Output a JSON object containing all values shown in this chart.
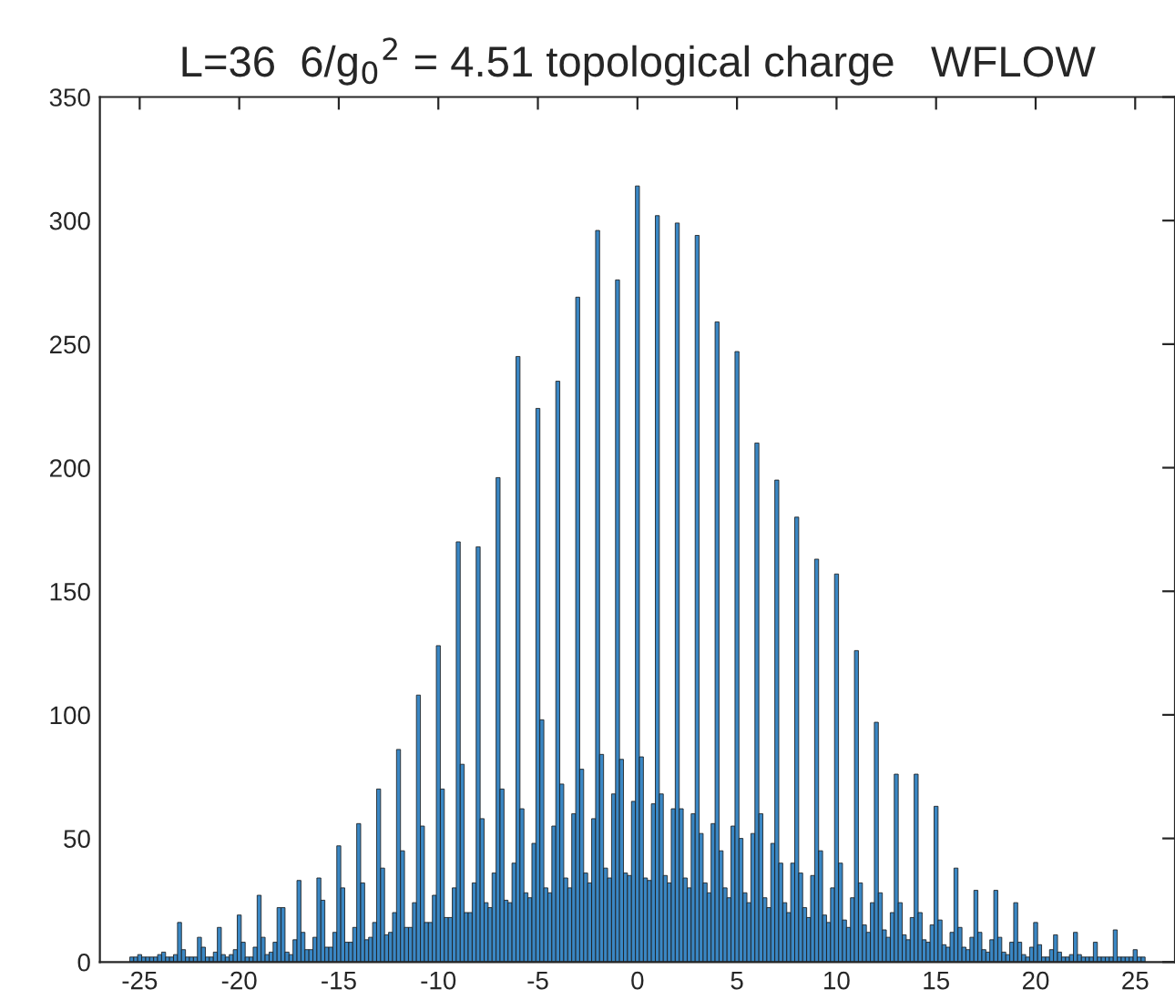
{
  "chart_data": {
    "type": "histogram",
    "title": "L=36  6/g$_{0}$$^{2}$ = 4.51 topological charge   WFLOW",
    "bins": [
      -25.5,
      -25.3,
      -25.1,
      -24.9,
      -24.7,
      -24.5,
      -24.3,
      -24.1,
      -23.9,
      -23.7,
      -23.5,
      -23.3,
      -23.1,
      -22.9,
      -22.7,
      -22.5,
      -22.3,
      -22.1,
      -21.9,
      -21.7,
      -21.5,
      -21.3,
      -21.1,
      -20.9,
      -20.7,
      -20.5,
      -20.3,
      -20.1,
      -19.9,
      -19.7,
      -19.5,
      -19.3,
      -19.1,
      -18.9,
      -18.7,
      -18.5,
      -18.3,
      -18.1,
      -17.9,
      -17.7,
      -17.5,
      -17.3,
      -17.1,
      -16.9,
      -16.7,
      -16.5,
      -16.3,
      -16.1,
      -15.9,
      -15.7,
      -15.5,
      -15.3,
      -15.1,
      -14.9,
      -14.7,
      -14.5,
      -14.3,
      -14.1,
      -13.9,
      -13.7,
      -13.5,
      -13.3,
      -13.1,
      -12.9,
      -12.7,
      -12.5,
      -12.3,
      -12.1,
      -11.9,
      -11.7,
      -11.5,
      -11.3,
      -11.1,
      -10.9,
      -10.7,
      -10.5,
      -10.3,
      -10.1,
      -9.9,
      -9.7,
      -9.5,
      -9.3,
      -9.1,
      -8.9,
      -8.7,
      -8.5,
      -8.3,
      -8.1,
      -7.9,
      -7.7,
      -7.5,
      -7.3,
      -7.1,
      -6.9,
      -6.7,
      -6.5,
      -6.3,
      -6.1,
      -5.9,
      -5.7,
      -5.5,
      -5.3,
      -5.1,
      -4.9,
      -4.7,
      -4.5,
      -4.3,
      -4.1,
      -3.9,
      -3.7,
      -3.5,
      -3.3,
      -3.1,
      -2.9,
      -2.7,
      -2.5,
      -2.3,
      -2.1,
      -1.9,
      -1.7,
      -1.5,
      -1.3,
      -1.1,
      -0.9,
      -0.7,
      -0.5,
      -0.3,
      -0.1,
      0.1,
      0.3,
      0.5,
      0.7,
      0.9,
      1.1,
      1.3,
      1.5,
      1.7,
      1.9,
      2.1,
      2.3,
      2.5,
      2.7,
      2.9,
      3.1,
      3.3,
      3.5,
      3.7,
      3.9,
      4.1,
      4.3,
      4.5,
      4.7,
      4.9,
      5.1,
      5.3,
      5.5,
      5.7,
      5.9,
      6.1,
      6.3,
      6.5,
      6.7,
      6.9,
      7.1,
      7.3,
      7.5,
      7.7,
      7.9,
      8.1,
      8.3,
      8.5,
      8.7,
      8.9,
      9.1,
      9.3,
      9.5,
      9.7,
      9.9,
      10.1,
      10.3,
      10.5,
      10.7,
      10.9,
      11.1,
      11.3,
      11.5,
      11.7,
      11.9,
      12.1,
      12.3,
      12.5,
      12.7,
      12.9,
      13.1,
      13.3,
      13.5,
      13.7,
      13.9,
      14.1,
      14.3,
      14.5,
      14.7,
      14.9,
      15.1,
      15.3,
      15.5,
      15.7,
      15.9,
      16.1,
      16.3,
      16.5,
      16.7,
      16.9,
      17.1,
      17.3,
      17.5,
      17.7,
      17.9,
      18.1,
      18.3,
      18.5,
      18.7,
      18.9,
      19.1,
      19.3,
      19.5,
      19.7,
      19.9,
      20.1,
      20.3,
      20.5,
      20.7,
      20.9,
      21.1,
      21.3,
      21.5,
      21.7,
      21.9,
      22.1,
      22.3,
      22.5,
      22.7,
      22.9,
      23.1,
      23.3,
      23.5,
      23.7,
      23.9,
      24.1,
      24.3,
      24.5,
      24.7,
      24.9,
      25.1,
      25.3,
      25.5
    ],
    "values": [
      2,
      2,
      3,
      2,
      2,
      2,
      2,
      3,
      4,
      2,
      2,
      3,
      16,
      5,
      2,
      2,
      2,
      10,
      6,
      2,
      2,
      4,
      14,
      3,
      2,
      3,
      5,
      19,
      8,
      2,
      2,
      6,
      27,
      10,
      3,
      4,
      8,
      22,
      22,
      4,
      3,
      9,
      33,
      12,
      5,
      5,
      10,
      34,
      25,
      6,
      6,
      12,
      47,
      30,
      8,
      8,
      14,
      56,
      32,
      9,
      10,
      16,
      70,
      38,
      11,
      12,
      20,
      86,
      45,
      14,
      14,
      24,
      108,
      55,
      16,
      16,
      27,
      128,
      70,
      18,
      18,
      30,
      170,
      80,
      20,
      20,
      32,
      168,
      58,
      24,
      22,
      36,
      196,
      70,
      25,
      24,
      40,
      245,
      62,
      28,
      26,
      48,
      224,
      98,
      30,
      28,
      55,
      235,
      72,
      34,
      30,
      60,
      269,
      78,
      36,
      32,
      58,
      296,
      84,
      38,
      34,
      68,
      276,
      82,
      36,
      35,
      65,
      314,
      83,
      34,
      33,
      64,
      302,
      68,
      35,
      32,
      62,
      299,
      62,
      34,
      30,
      60,
      294,
      52,
      32,
      28,
      56,
      259,
      45,
      30,
      26,
      55,
      247,
      50,
      28,
      24,
      52,
      210,
      60,
      26,
      22,
      48,
      195,
      40,
      24,
      20,
      40,
      180,
      36,
      22,
      18,
      35,
      163,
      45,
      19,
      16,
      30,
      157,
      40,
      17,
      14,
      26,
      126,
      32,
      15,
      12,
      24,
      97,
      28,
      13,
      10,
      20,
      76,
      24,
      11,
      9,
      18,
      76,
      20,
      9,
      8,
      15,
      63,
      17,
      7,
      6,
      12,
      38,
      14,
      6,
      5,
      10,
      29,
      12,
      5,
      4,
      9,
      29,
      10,
      4,
      3,
      8,
      24,
      8,
      3,
      2,
      6,
      16,
      7,
      2,
      2,
      5,
      11,
      4,
      2,
      2,
      3,
      12,
      3,
      2,
      2,
      2,
      8,
      2,
      2,
      2,
      2,
      13,
      2,
      2,
      2,
      2,
      5,
      2,
      2
    ],
    "color": "#3a87c4",
    "xlim": [
      -27,
      27
    ],
    "xticks": [
      -25,
      -20,
      -15,
      -10,
      -5,
      0,
      5,
      10,
      15,
      20,
      25
    ],
    "ylim": [
      0,
      350
    ],
    "yticks": [
      0,
      50,
      100,
      150,
      200,
      250,
      300,
      350
    ],
    "grid": false
  }
}
